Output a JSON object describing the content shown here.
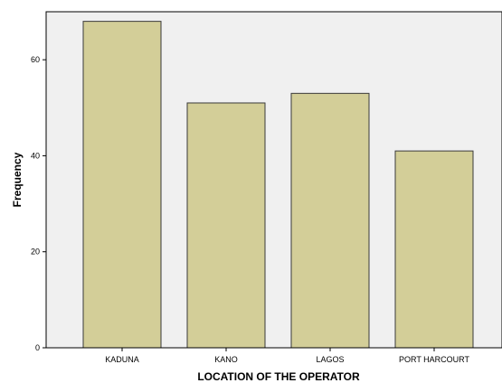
{
  "chart_data": {
    "type": "bar",
    "title": "",
    "xlabel": "LOCATION OF THE OPERATOR",
    "ylabel": "Frequency",
    "categories": [
      "KADUNA",
      "KANO",
      "LAGOS",
      "PORT HARCOURT"
    ],
    "values": [
      68,
      51,
      53,
      41
    ],
    "ylim": [
      0,
      70
    ],
    "yticks": [
      0,
      20,
      40,
      60
    ],
    "grid": false,
    "legend": "none",
    "colors": {
      "bar_fill": "#d3ce98",
      "bar_stroke": "#3a3a3a",
      "plot_background": "#f0f0f0",
      "axis": "#000000"
    }
  }
}
